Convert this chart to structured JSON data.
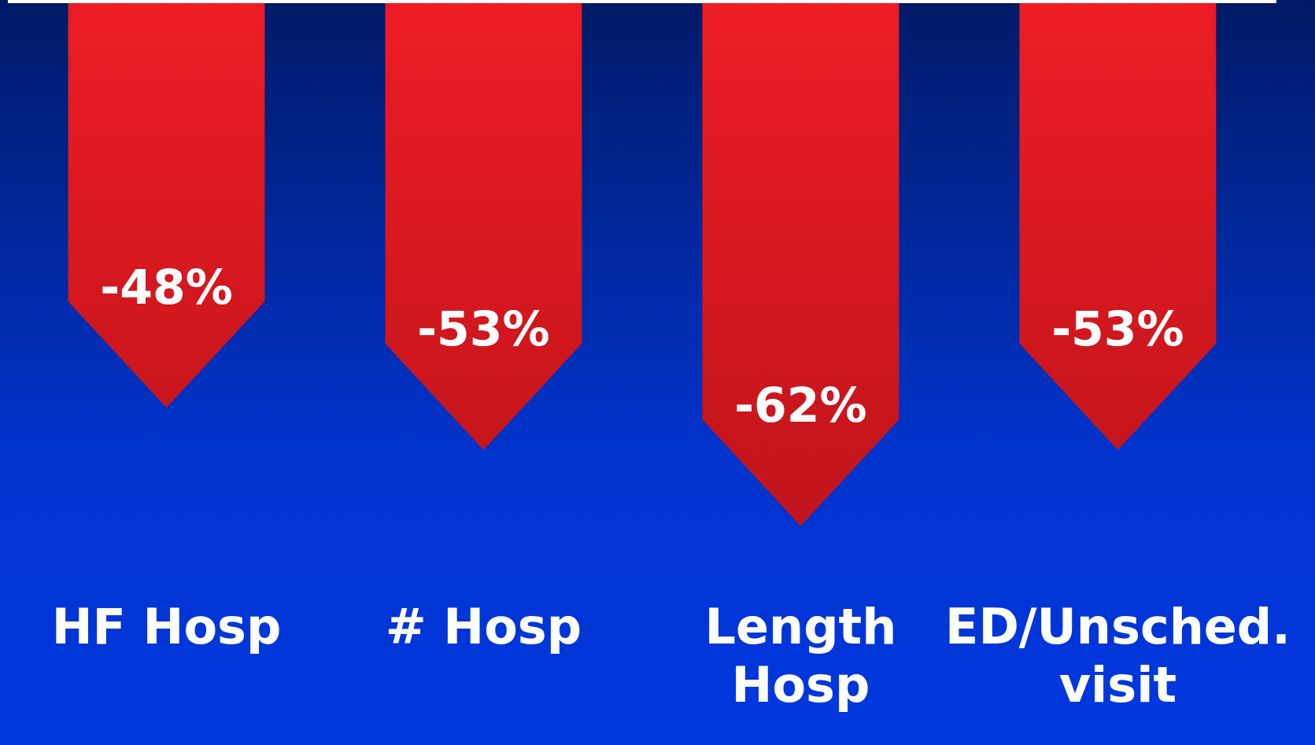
{
  "chart_data": {
    "type": "bar",
    "categories": [
      "HF Hosp",
      "# Hosp",
      "Length Hosp",
      "ED/Unsched. visit"
    ],
    "values": [
      -48,
      -53,
      -62,
      -53
    ],
    "color": "#c0141b",
    "value_labels": [
      "-48%",
      "-53%",
      "-62%",
      "-53%"
    ],
    "grid": false,
    "legend": false,
    "tick_labels": "x"
  }
}
